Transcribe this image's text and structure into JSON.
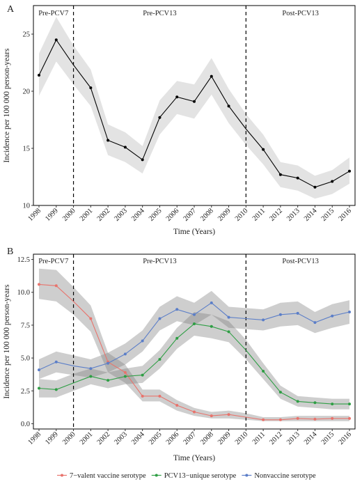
{
  "chart_data": [
    {
      "type": "line",
      "panel_label": "A",
      "xlabel": "Time (Years)",
      "ylabel": "Incidence per 100 000 person-years",
      "x": [
        1998,
        1999,
        2000,
        2001,
        2002,
        2003,
        2004,
        2005,
        2006,
        2007,
        2008,
        2009,
        2010,
        2011,
        2012,
        2013,
        2014,
        2015,
        2016
      ],
      "x_ticks": [
        "1998",
        "1999",
        "2000",
        "2001",
        "2002",
        "2003",
        "2004",
        "2005",
        "2006",
        "2007",
        "2008",
        "2009",
        "2010",
        "2011",
        "2012",
        "2013",
        "2014",
        "2015",
        "2016"
      ],
      "y_ticks": [
        "10",
        "15",
        "20",
        "25"
      ],
      "ylim": [
        10,
        27.5
      ],
      "vlines": [
        2000,
        2010
      ],
      "periods": [
        "Pre-PCV7",
        "Pre-PCV13",
        "Post-PCV13"
      ],
      "series": [
        {
          "color": "#000000",
          "values": [
            21.4,
            24.5,
            null,
            20.3,
            15.7,
            15.1,
            14.0,
            17.7,
            19.5,
            19.1,
            21.3,
            18.7,
            null,
            14.9,
            12.7,
            12.4,
            11.6,
            12.1,
            13.0
          ],
          "line": [
            21.4,
            24.5,
            22.3,
            20.3,
            15.7,
            15.1,
            14.0,
            17.7,
            19.5,
            19.1,
            21.3,
            18.7,
            16.7,
            14.9,
            12.7,
            12.4,
            11.6,
            12.1,
            13.0
          ],
          "lower": [
            19.6,
            22.6,
            20.6,
            18.7,
            14.4,
            13.8,
            12.8,
            16.2,
            18.0,
            17.6,
            19.7,
            17.2,
            15.3,
            13.6,
            11.6,
            11.3,
            10.6,
            11.0,
            11.9
          ],
          "upper": [
            23.3,
            26.5,
            24.0,
            21.9,
            17.1,
            16.4,
            15.2,
            19.2,
            20.9,
            20.6,
            22.9,
            20.2,
            18.0,
            16.2,
            13.8,
            13.5,
            12.6,
            13.1,
            14.2
          ]
        }
      ]
    },
    {
      "type": "line",
      "panel_label": "B",
      "xlabel": "Time (Years)",
      "ylabel": "Incidence per 100 000 person-years",
      "x": [
        1998,
        1999,
        2000,
        2001,
        2002,
        2003,
        2004,
        2005,
        2006,
        2007,
        2008,
        2009,
        2010,
        2011,
        2012,
        2013,
        2014,
        2015,
        2016
      ],
      "x_ticks": [
        "1998",
        "1999",
        "2000",
        "2001",
        "2002",
        "2003",
        "2004",
        "2005",
        "2006",
        "2007",
        "2008",
        "2009",
        "2010",
        "2011",
        "2012",
        "2013",
        "2014",
        "2015",
        "2016"
      ],
      "y_ticks": [
        "0.0",
        "2.5",
        "5.0",
        "7.5",
        "10.0",
        "12.5"
      ],
      "ylim": [
        -0.4,
        12.9
      ],
      "vlines": [
        2000,
        2010
      ],
      "periods": [
        "Pre-PCV7",
        "Pre-PCV13",
        "Post-PCV13"
      ],
      "legend_position": "bottom",
      "series": [
        {
          "name": "7−valent vaccine serotype",
          "color": "#E8736C",
          "values": [
            10.6,
            10.5,
            null,
            8.0,
            4.7,
            3.9,
            2.1,
            2.1,
            1.4,
            0.9,
            0.6,
            0.7,
            null,
            0.3,
            0.3,
            0.4,
            0.35,
            0.4,
            0.4
          ],
          "line": [
            10.6,
            10.5,
            9.3,
            8.0,
            4.7,
            3.9,
            2.1,
            2.1,
            1.4,
            0.9,
            0.6,
            0.7,
            0.5,
            0.3,
            0.3,
            0.4,
            0.35,
            0.4,
            0.4
          ],
          "lower": [
            9.5,
            9.3,
            8.3,
            7.0,
            3.9,
            3.1,
            1.7,
            1.7,
            1.0,
            0.6,
            0.4,
            0.4,
            0.3,
            0.2,
            0.2,
            0.2,
            0.2,
            0.2,
            0.2
          ],
          "upper": [
            11.8,
            11.7,
            10.4,
            9.0,
            5.4,
            4.5,
            2.6,
            2.6,
            1.8,
            1.2,
            0.9,
            1.0,
            0.8,
            0.5,
            0.5,
            0.6,
            0.6,
            0.6,
            0.6
          ]
        },
        {
          "name": "PCV13−unique serotype",
          "color": "#2E9E44",
          "values": [
            2.7,
            2.6,
            null,
            3.6,
            3.3,
            3.6,
            3.7,
            4.9,
            6.5,
            7.6,
            7.4,
            7.0,
            null,
            4.0,
            2.4,
            1.7,
            1.6,
            1.5,
            1.5
          ],
          "line": [
            2.7,
            2.6,
            3.1,
            3.6,
            3.3,
            3.6,
            3.7,
            4.9,
            6.5,
            7.6,
            7.4,
            7.0,
            5.6,
            4.0,
            2.4,
            1.7,
            1.6,
            1.5,
            1.5
          ],
          "lower": [
            2.0,
            2.0,
            2.5,
            3.0,
            2.7,
            3.0,
            3.1,
            4.2,
            5.7,
            6.7,
            6.5,
            6.2,
            4.9,
            3.4,
            1.9,
            1.3,
            1.2,
            1.1,
            1.1
          ],
          "upper": [
            3.4,
            3.3,
            3.8,
            4.2,
            3.9,
            4.2,
            4.4,
            5.6,
            7.3,
            8.5,
            8.3,
            7.8,
            6.4,
            4.6,
            2.9,
            2.1,
            2.0,
            1.9,
            1.9
          ]
        },
        {
          "name": "Nonvaccine serotype",
          "color": "#5B7EC8",
          "values": [
            4.1,
            4.7,
            null,
            4.2,
            4.6,
            5.3,
            6.3,
            8.0,
            8.7,
            8.3,
            9.2,
            8.1,
            null,
            7.9,
            8.3,
            8.4,
            7.7,
            8.2,
            8.5
          ],
          "line": [
            4.1,
            4.7,
            4.4,
            4.2,
            4.6,
            5.3,
            6.3,
            8.0,
            8.7,
            8.3,
            9.2,
            8.1,
            8.0,
            7.9,
            8.3,
            8.4,
            7.7,
            8.2,
            8.5
          ],
          "lower": [
            3.4,
            3.9,
            3.7,
            3.5,
            3.9,
            4.5,
            5.5,
            7.1,
            7.8,
            7.5,
            8.3,
            7.3,
            7.2,
            7.1,
            7.4,
            7.5,
            6.9,
            7.3,
            7.6
          ],
          "upper": [
            4.9,
            5.5,
            5.2,
            4.9,
            5.4,
            6.1,
            7.1,
            8.9,
            9.7,
            9.2,
            10.1,
            8.9,
            8.8,
            8.7,
            9.2,
            9.3,
            8.5,
            9.1,
            9.4
          ]
        }
      ]
    }
  ]
}
